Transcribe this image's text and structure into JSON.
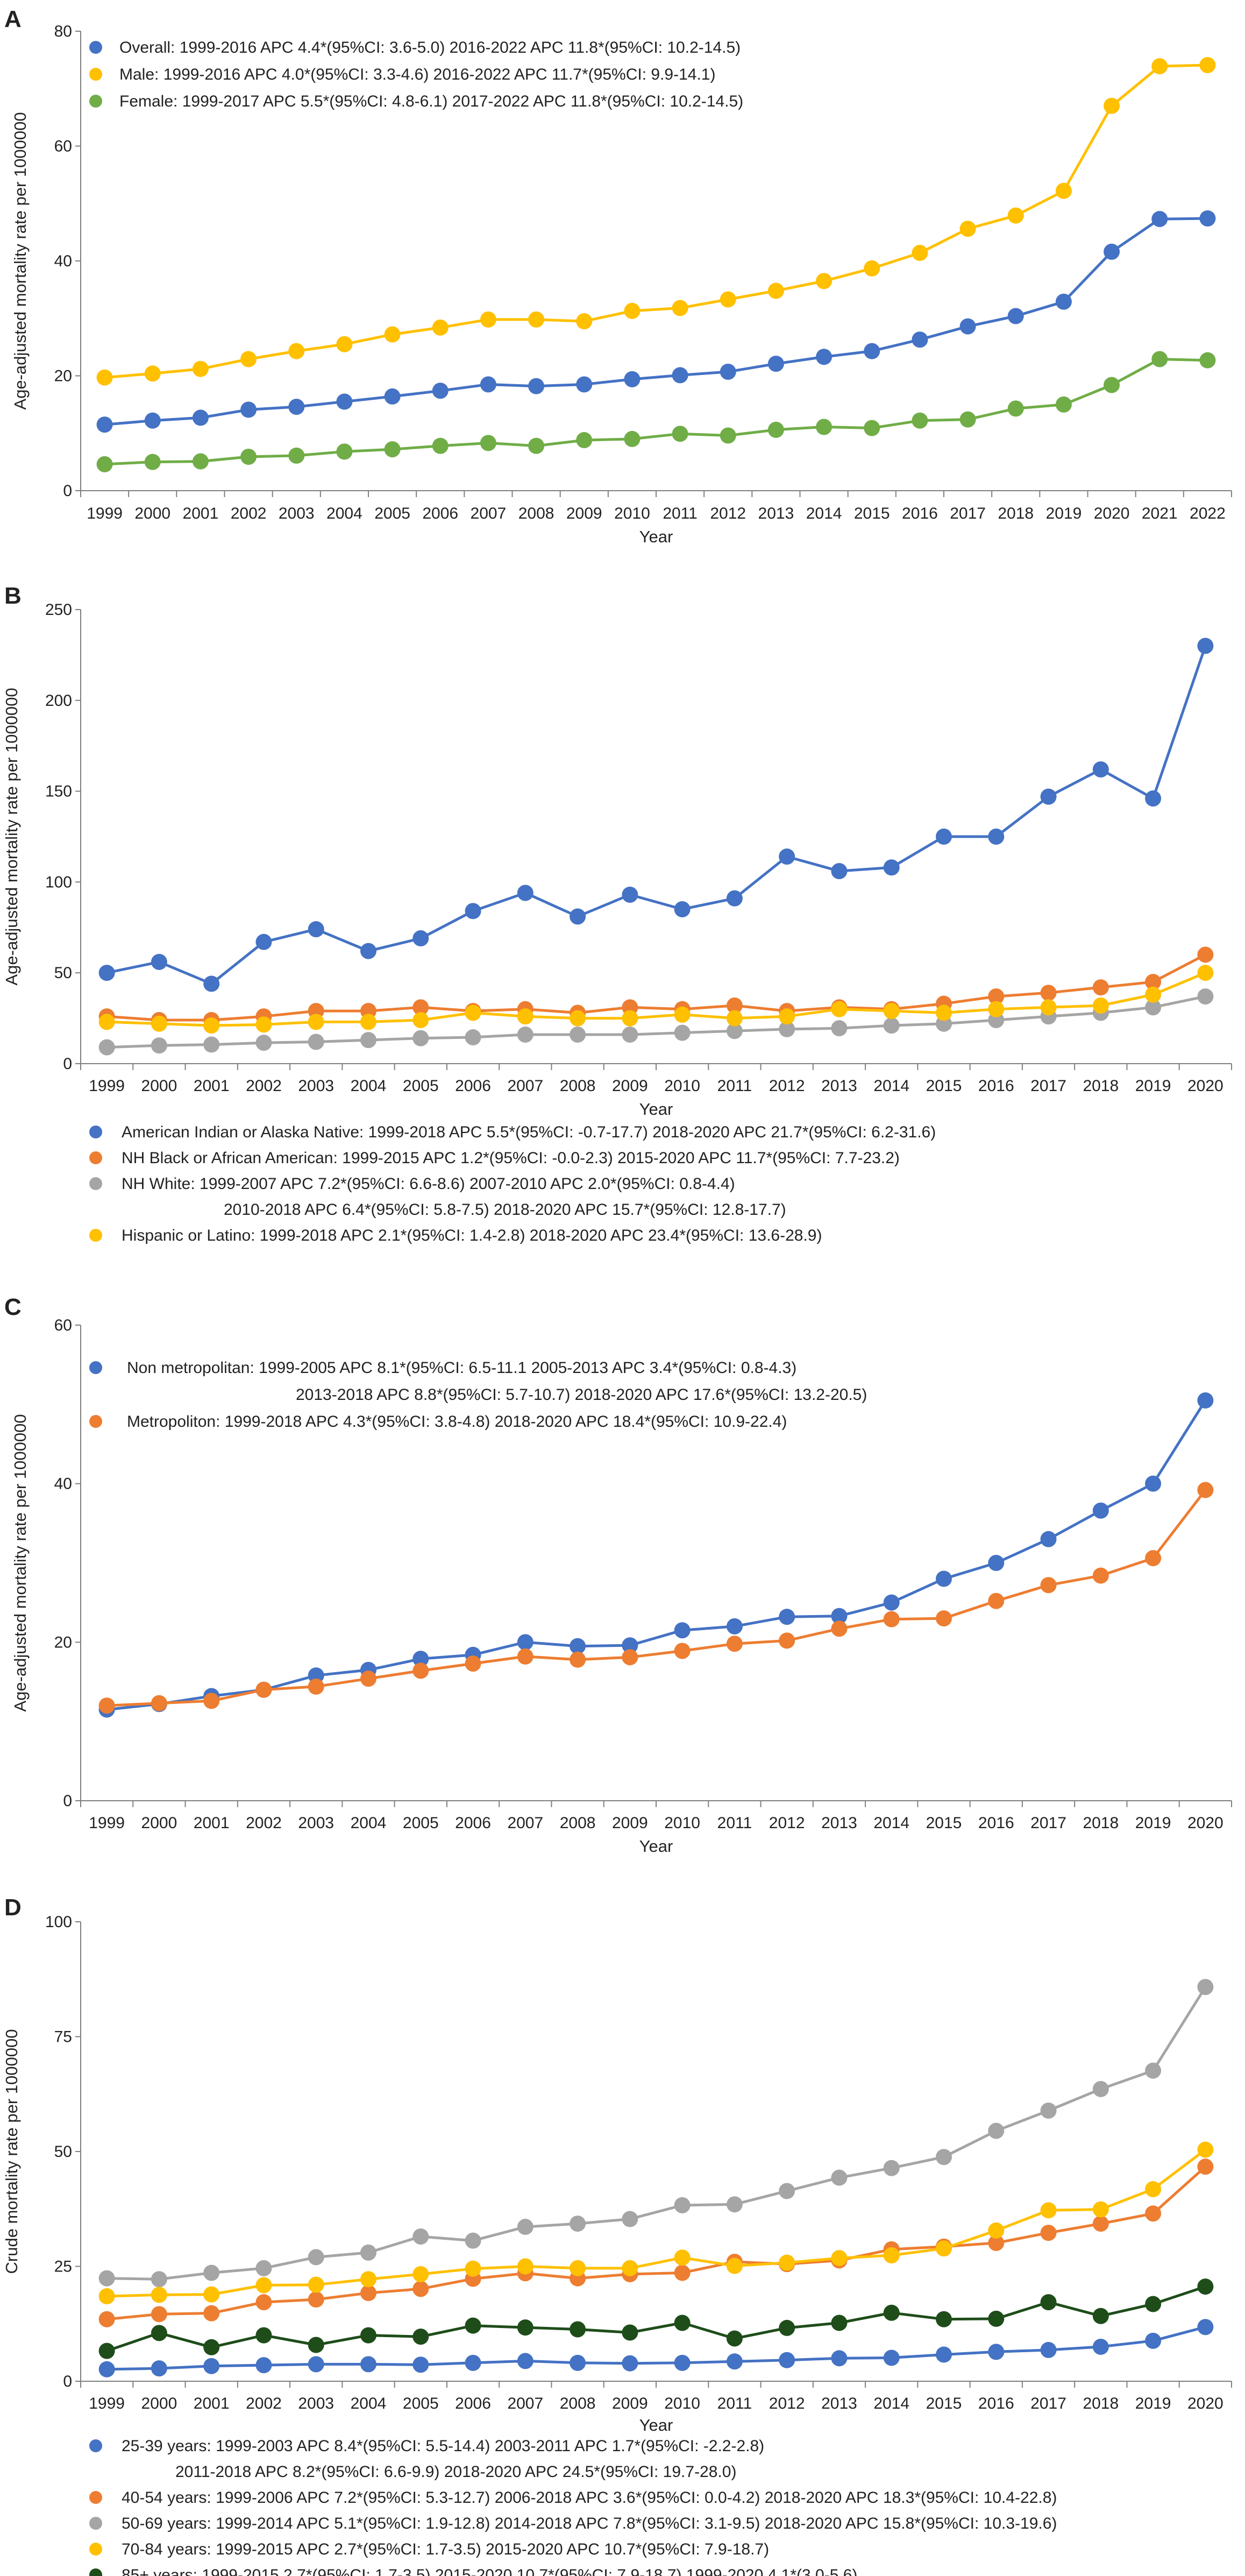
{
  "chart_data": [
    {
      "panel": "A",
      "type": "line",
      "xlabel": "Year",
      "ylabel": "Age-adjusted mortality rate per 1000000",
      "ylim": [
        0,
        80
      ],
      "yticks": [
        0,
        20,
        40,
        60,
        80
      ],
      "legend_position": "top-left",
      "categories": [
        "1999",
        "2000",
        "2001",
        "2002",
        "2003",
        "2004",
        "2005",
        "2006",
        "2007",
        "2008",
        "2009",
        "2010",
        "2011",
        "2012",
        "2013",
        "2014",
        "2015",
        "2016",
        "2017",
        "2018",
        "2019",
        "2020",
        "2021",
        "2022"
      ],
      "series": [
        {
          "name": "Overall",
          "color": "#4472c4",
          "legend": [
            "Overall: 1999-2016 APC 4.4*(95%CI: 3.6-5.0) 2016-2022 APC 11.8*(95%CI: 10.2-14.5)"
          ],
          "values": [
            11.5,
            12.2,
            12.7,
            14.1,
            14.6,
            15.5,
            16.4,
            17.4,
            18.5,
            18.2,
            18.5,
            19.4,
            20.1,
            20.7,
            22.1,
            23.3,
            24.3,
            26.3,
            28.6,
            30.4,
            32.9,
            41.6,
            47.3,
            47.4
          ]
        },
        {
          "name": "Male",
          "color": "#ffc000",
          "legend": [
            "Male: 1999-2016 APC 4.0*(95%CI: 3.3-4.6) 2016-2022 APC 11.7*(95%CI: 9.9-14.1)"
          ],
          "values": [
            19.7,
            20.4,
            21.2,
            22.9,
            24.3,
            25.5,
            27.2,
            28.4,
            29.8,
            29.8,
            29.5,
            31.3,
            31.8,
            33.3,
            34.8,
            36.5,
            38.7,
            41.4,
            45.6,
            47.9,
            52.2,
            67.0,
            73.9,
            74.1
          ]
        },
        {
          "name": "Female",
          "color": "#70ad47",
          "legend": [
            "Female: 1999-2017 APC 5.5*(95%CI: 4.8-6.1) 2017-2022 APC 11.8*(95%CI: 10.2-14.5)"
          ],
          "values": [
            4.6,
            5.0,
            5.1,
            5.9,
            6.1,
            6.8,
            7.2,
            7.8,
            8.3,
            7.8,
            8.8,
            9.0,
            9.9,
            9.6,
            10.6,
            11.1,
            10.9,
            12.2,
            12.4,
            14.3,
            15.0,
            18.4,
            22.9,
            22.7
          ]
        }
      ]
    },
    {
      "panel": "B",
      "type": "line",
      "xlabel": "Year",
      "ylabel": "Age-adjusted mortality rate per 1000000",
      "ylim": [
        0,
        250
      ],
      "yticks": [
        0,
        50,
        100,
        150,
        200,
        250
      ],
      "legend_position": "below",
      "categories": [
        "1999",
        "2000",
        "2001",
        "2002",
        "2003",
        "2004",
        "2005",
        "2006",
        "2007",
        "2008",
        "2009",
        "2010",
        "2011",
        "2012",
        "2013",
        "2014",
        "2015",
        "2016",
        "2017",
        "2018",
        "2019",
        "2020"
      ],
      "series": [
        {
          "name": "American Indian or Alaska Native",
          "color": "#4472c4",
          "legend": [
            "American Indian or Alaska Native: 1999-2018 APC 5.5*(95%CI: -0.7-17.7) 2018-2020 APC 21.7*(95%CI: 6.2-31.6)"
          ],
          "values": [
            50,
            56,
            44,
            67,
            74,
            62,
            69,
            84,
            94,
            81,
            93,
            85,
            91,
            114,
            106,
            108,
            125,
            125,
            147,
            162,
            146,
            230
          ]
        },
        {
          "name": "NH Black or African American",
          "color": "#ed7d31",
          "legend": [
            "NH Black or African American: 1999-2015 APC 1.2*(95%CI: -0.0-2.3) 2015-2020 APC 11.7*(95%CI: 7.7-23.2)"
          ],
          "values": [
            26,
            24,
            24,
            26,
            29,
            29,
            31,
            29,
            30,
            28,
            31,
            30,
            32,
            29,
            31,
            30,
            33,
            37,
            39,
            42,
            45,
            60
          ]
        },
        {
          "name": "NH White",
          "color": "#a5a5a5",
          "legend": [
            "NH White: 1999-2007 APC 7.2*(95%CI: 6.6-8.6) 2007-2010 APC 2.0*(95%CI: 0.8-4.4)",
            "2010-2018 APC 6.4*(95%CI: 5.8-7.5) 2018-2020 APC 15.7*(95%CI: 12.8-17.7)"
          ],
          "values": [
            9,
            10,
            10.5,
            11.5,
            12,
            13,
            14,
            14.5,
            16,
            16,
            16,
            17,
            18,
            19,
            19.5,
            21,
            22,
            24,
            26,
            28,
            31,
            37
          ]
        },
        {
          "name": "Hispanic or Latino",
          "color": "#ffc000",
          "legend": [
            "Hispanic or Latino: 1999-2018 APC 2.1*(95%CI: 1.4-2.8) 2018-2020 APC 23.4*(95%CI: 13.6-28.9)"
          ],
          "values": [
            23,
            22,
            21,
            21.5,
            23,
            23,
            24,
            28,
            26,
            25,
            25,
            27,
            25,
            26,
            30,
            29,
            28,
            30,
            31,
            32,
            38,
            50
          ]
        }
      ]
    },
    {
      "panel": "C",
      "type": "line",
      "xlabel": "Year",
      "ylabel": "Age-adjusted mortality rate per 1000000",
      "ylim": [
        0,
        60
      ],
      "yticks": [
        0,
        20,
        40,
        60
      ],
      "legend_position": "top-left",
      "categories": [
        "1999",
        "2000",
        "2001",
        "2002",
        "2003",
        "2004",
        "2005",
        "2006",
        "2007",
        "2008",
        "2009",
        "2010",
        "2011",
        "2012",
        "2013",
        "2014",
        "2015",
        "2016",
        "2017",
        "2018",
        "2019",
        "2020"
      ],
      "series": [
        {
          "name": "Non metropolitan",
          "color": "#4472c4",
          "legend": [
            "Non metropolitan: 1999-2005 APC 8.1*(95%CI: 6.5-11.1 2005-2013 APC 3.4*(95%CI: 0.8-4.3)",
            "2013-2018 APC 8.8*(95%CI: 5.7-10.7) 2018-2020 APC 17.6*(95%CI: 13.2-20.5)"
          ],
          "values": [
            11.5,
            12.2,
            13.2,
            14.0,
            15.8,
            16.5,
            17.9,
            18.4,
            20.0,
            19.5,
            19.6,
            21.5,
            22.0,
            23.2,
            23.3,
            25.0,
            28.0,
            30.0,
            33.0,
            36.6,
            40.0,
            50.5
          ]
        },
        {
          "name": "Metropoliton",
          "color": "#ed7d31",
          "legend": [
            "Metropoliton: 1999-2018 APC 4.3*(95%CI: 3.8-4.8) 2018-2020 APC 18.4*(95%CI: 10.9-22.4)"
          ],
          "values": [
            12.0,
            12.3,
            12.6,
            14.0,
            14.4,
            15.4,
            16.4,
            17.3,
            18.2,
            17.8,
            18.1,
            18.9,
            19.8,
            20.2,
            21.7,
            22.9,
            23.0,
            25.2,
            27.2,
            28.4,
            30.6,
            39.2
          ]
        }
      ]
    },
    {
      "panel": "D",
      "type": "line",
      "xlabel": "Year",
      "ylabel": "Crude mortality rate per 1000000",
      "ylim": [
        0,
        100
      ],
      "yticks": [
        0,
        25,
        50,
        75,
        100
      ],
      "legend_position": "below",
      "categories": [
        "1999",
        "2000",
        "2001",
        "2002",
        "2003",
        "2004",
        "2005",
        "2006",
        "2007",
        "2008",
        "2009",
        "2010",
        "2011",
        "2012",
        "2013",
        "2014",
        "2015",
        "2016",
        "2017",
        "2018",
        "2019",
        "2020"
      ],
      "series": [
        {
          "name": "25-39 years",
          "color": "#4472c4",
          "legend": [
            "25-39 years: 1999-2003 APC 8.4*(95%CI: 5.5-14.4) 2003-2011 APC 1.7*(95%CI: -2.2-2.8)",
            "2011-2018 APC 8.2*(95%CI: 6.6-9.9) 2018-2020 APC 24.5*(95%CI: 19.7-28.0)"
          ],
          "values": [
            2.6,
            2.8,
            3.3,
            3.5,
            3.7,
            3.7,
            3.6,
            4.0,
            4.4,
            4.0,
            3.9,
            4.0,
            4.3,
            4.6,
            5.0,
            5.1,
            5.8,
            6.4,
            6.8,
            7.5,
            8.8,
            11.8
          ]
        },
        {
          "name": "40-54 years",
          "color": "#ed7d31",
          "legend": [
            "40-54 years: 1999-2006 APC 7.2*(95%CI: 5.3-12.7) 2006-2018 APC 3.6*(95%CI: 0.0-4.2) 2018-2020 APC 18.3*(95%CI: 10.4-22.8)"
          ],
          "values": [
            13.5,
            14.6,
            14.8,
            17.2,
            17.8,
            19.2,
            20.1,
            22.3,
            23.5,
            22.4,
            23.3,
            23.6,
            26.0,
            25.5,
            26.3,
            28.7,
            29.3,
            30.1,
            32.3,
            34.3,
            36.5,
            46.7
          ]
        },
        {
          "name": "50-69 years",
          "color": "#a5a5a5",
          "legend": [
            "50-69 years: 1999-2014 APC 5.1*(95%CI: 1.9-12.8) 2014-2018 APC 7.8*(95%CI: 3.1-9.5) 2018-2020 APC 15.8*(95%CI: 10.3-19.6)"
          ],
          "values": [
            22.4,
            22.2,
            23.6,
            24.6,
            27.0,
            28.0,
            31.5,
            30.6,
            33.6,
            34.3,
            35.3,
            38.3,
            38.5,
            41.4,
            44.3,
            46.4,
            48.8,
            54.5,
            58.9,
            63.6,
            67.6,
            85.8
          ]
        },
        {
          "name": "70-84 years",
          "color": "#ffc000",
          "legend": [
            "70-84 years: 1999-2015 APC 2.7*(95%CI: 1.7-3.5) 2015-2020 APC 10.7*(95%CI: 7.9-18.7)"
          ],
          "values": [
            18.5,
            18.8,
            18.9,
            20.9,
            21.0,
            22.2,
            23.3,
            24.5,
            25.0,
            24.6,
            24.6,
            26.9,
            25.1,
            25.8,
            26.8,
            27.4,
            28.9,
            32.8,
            37.2,
            37.4,
            41.8,
            50.4
          ]
        },
        {
          "name": "85+ years",
          "color": "#1e4d1a",
          "legend": [
            "85+ years: 1999-2015 2.7*(95%CI: 1.7-3.5) 2015-2020 10.7*(95%CI: 7.9-18.7) 1999-2020 4.1*(3.0-5.6)"
          ],
          "values": [
            6.6,
            10.5,
            7.4,
            10.0,
            7.9,
            10.0,
            9.7,
            12.1,
            11.7,
            11.3,
            10.6,
            12.7,
            9.3,
            11.6,
            12.7,
            14.9,
            13.5,
            13.6,
            17.2,
            14.2,
            16.8,
            20.6
          ]
        }
      ]
    }
  ]
}
